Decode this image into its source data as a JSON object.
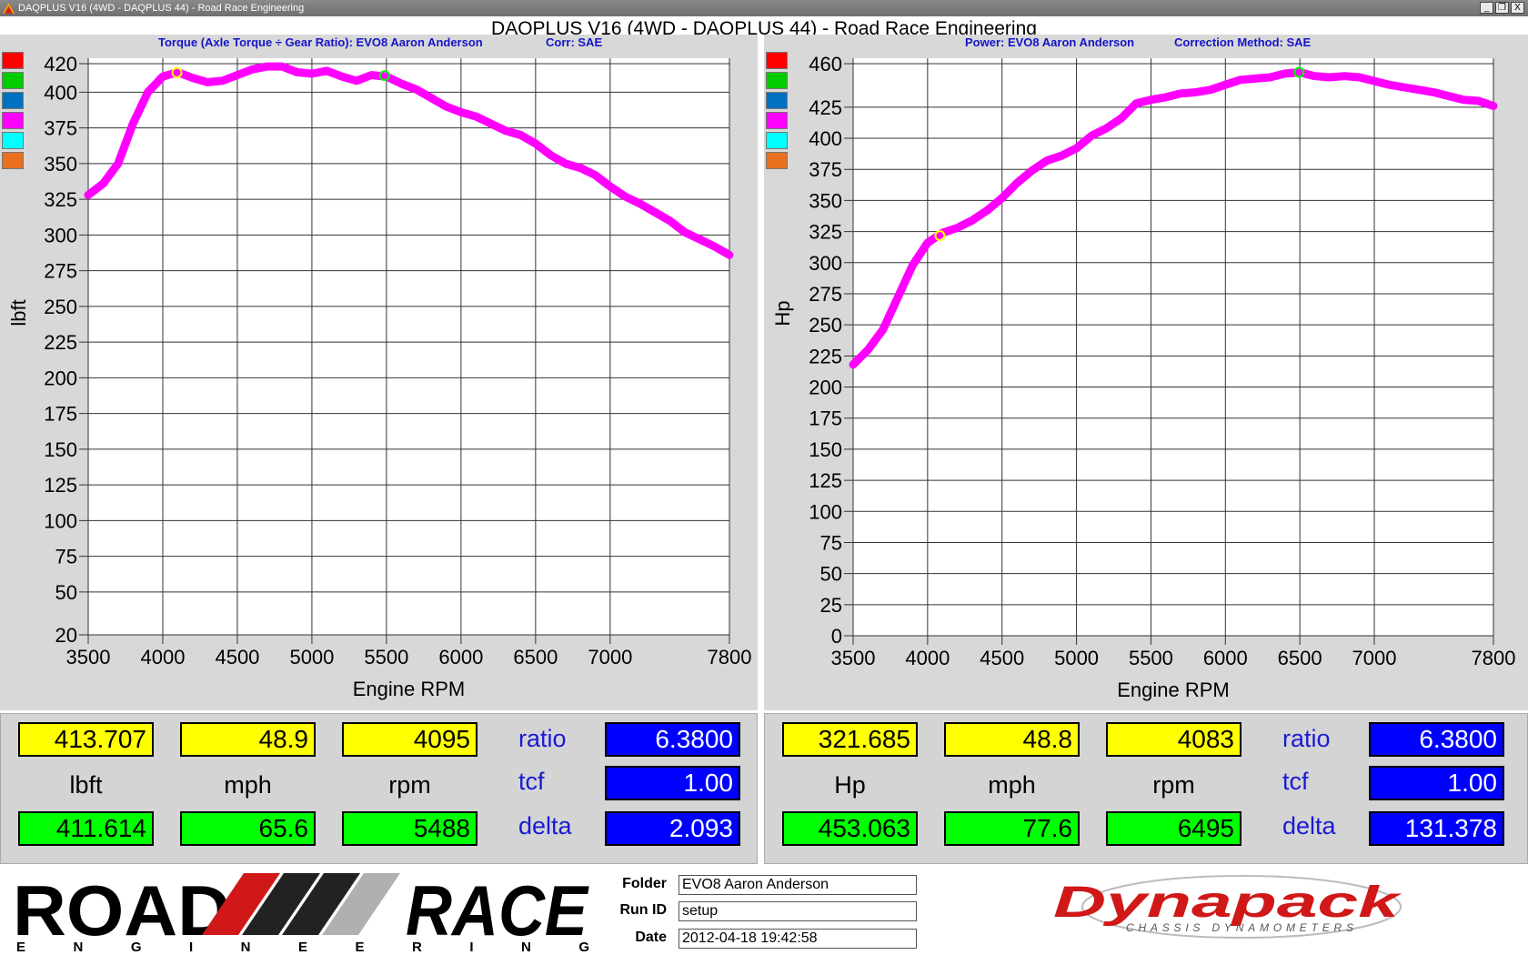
{
  "window": {
    "title": "DAQPLUS V16 (4WD - DAQPLUS 44) - Road Race Engineering",
    "controls": [
      "_",
      "❐",
      "X"
    ]
  },
  "main_title": "DAQPLUS V16 (4WD - DAQPLUS 44) - Road Race Engineering",
  "left_panel": {
    "title_a": "Torque (Axle Torque ÷ Gear Ratio): EVO8 Aaron Anderson",
    "title_b": "Corr: SAE",
    "swatch_colors": [
      "#ff0000",
      "#00cc00",
      "#0070c0",
      "#ff00ff",
      "#00ffff",
      "#e87020"
    ]
  },
  "right_panel": {
    "title_a": "Power: EVO8 Aaron Anderson",
    "title_b": "Correction Method: SAE",
    "swatch_colors": [
      "#ff0000",
      "#00cc00",
      "#0070c0",
      "#ff00ff",
      "#00ffff",
      "#e87020"
    ]
  },
  "chart_data": [
    {
      "type": "line",
      "title": "Torque (Axle Torque ÷ Gear Ratio): EVO8 Aaron Anderson",
      "xlabel": "Engine RPM",
      "ylabel": "lbft",
      "xlim": [
        3500,
        7800
      ],
      "ylim": [
        20,
        420
      ],
      "x_ticks": [
        3500,
        4000,
        4500,
        5000,
        5500,
        6000,
        6500,
        7000,
        7800
      ],
      "y_ticks": [
        20,
        50,
        75,
        100,
        125,
        150,
        175,
        200,
        225,
        250,
        275,
        300,
        325,
        350,
        375,
        400,
        420
      ],
      "grid": true,
      "series": [
        {
          "color": "#ff00ff",
          "x": [
            3500,
            3600,
            3700,
            3800,
            3900,
            4000,
            4100,
            4200,
            4300,
            4400,
            4500,
            4600,
            4700,
            4800,
            4900,
            5000,
            5100,
            5200,
            5300,
            5400,
            5500,
            5600,
            5700,
            5800,
            5900,
            6000,
            6100,
            6200,
            6300,
            6400,
            6500,
            6600,
            6700,
            6800,
            6900,
            7000,
            7100,
            7200,
            7300,
            7400,
            7500,
            7600,
            7700,
            7800
          ],
          "y": [
            328,
            336,
            350,
            378,
            400,
            411,
            414,
            410,
            407,
            408,
            412,
            416,
            418,
            418,
            414,
            413,
            415,
            411,
            408,
            412,
            411,
            406,
            402,
            396,
            390,
            386,
            383,
            378,
            373,
            370,
            364,
            356,
            350,
            347,
            342,
            334,
            327,
            322,
            316,
            310,
            302,
            297,
            292,
            286
          ]
        }
      ],
      "markers": [
        {
          "x": 4095,
          "y": 413.707,
          "color": "#ffff00"
        },
        {
          "x": 5488,
          "y": 411.614,
          "color": "#00ff00"
        }
      ]
    },
    {
      "type": "line",
      "title": "Power: EVO8 Aaron Anderson",
      "xlabel": "Engine RPM",
      "ylabel": "Hp",
      "xlim": [
        3500,
        7800
      ],
      "ylim": [
        0,
        460
      ],
      "x_ticks": [
        3500,
        4000,
        4500,
        5000,
        5500,
        6000,
        6500,
        7000,
        7800
      ],
      "y_ticks": [
        0,
        25,
        50,
        75,
        100,
        125,
        150,
        175,
        200,
        225,
        250,
        275,
        300,
        325,
        350,
        375,
        400,
        425,
        460
      ],
      "grid": true,
      "series": [
        {
          "color": "#ff00ff",
          "x": [
            3500,
            3600,
            3700,
            3800,
            3900,
            4000,
            4100,
            4200,
            4300,
            4400,
            4500,
            4600,
            4700,
            4800,
            4900,
            5000,
            5100,
            5200,
            5300,
            5400,
            5500,
            5600,
            5700,
            5800,
            5900,
            6000,
            6100,
            6200,
            6300,
            6400,
            6500,
            6600,
            6700,
            6800,
            6900,
            7000,
            7100,
            7200,
            7300,
            7400,
            7500,
            7600,
            7700,
            7800
          ],
          "y": [
            218,
            230,
            246,
            272,
            298,
            316,
            324,
            328,
            334,
            342,
            352,
            364,
            374,
            382,
            386,
            392,
            402,
            408,
            416,
            428,
            431,
            433,
            436,
            437,
            439,
            443,
            447,
            448,
            449,
            452,
            453,
            450,
            449,
            450,
            449,
            446,
            443,
            441,
            439,
            437,
            434,
            431,
            430,
            426
          ]
        }
      ],
      "markers": [
        {
          "x": 4083,
          "y": 321.685,
          "color": "#ffff00"
        },
        {
          "x": 6495,
          "y": 453.063,
          "color": "#00ff00"
        }
      ]
    }
  ],
  "readouts": {
    "left": {
      "yellow": [
        "413.707",
        "48.9",
        "4095"
      ],
      "units": [
        "lbft",
        "mph",
        "rpm"
      ],
      "green": [
        "411.614",
        "65.6",
        "5488"
      ],
      "labels": [
        "ratio",
        "tcf",
        "delta"
      ],
      "blue": [
        "6.3800",
        "1.00",
        "2.093"
      ]
    },
    "right": {
      "yellow": [
        "321.685",
        "48.8",
        "4083"
      ],
      "units": [
        "Hp",
        "mph",
        "rpm"
      ],
      "green": [
        "453.063",
        "77.6",
        "6495"
      ],
      "labels": [
        "ratio",
        "tcf",
        "delta"
      ],
      "blue": [
        "6.3800",
        "1.00",
        "131.378"
      ]
    }
  },
  "footer": {
    "logo_top": "ROAD",
    "logo_top2": "RACE",
    "logo_bottom": "E N G I N E E R I N G",
    "folder_label": "Folder",
    "folder_value": "EVO8 Aaron Anderson",
    "runid_label": "Run ID",
    "runid_value": "setup",
    "date_label": "Date",
    "date_value": "2012-04-18 19:42:58",
    "brand": "Dynapack",
    "brand_sub": "CHASSIS DYNAMOMETERS"
  }
}
